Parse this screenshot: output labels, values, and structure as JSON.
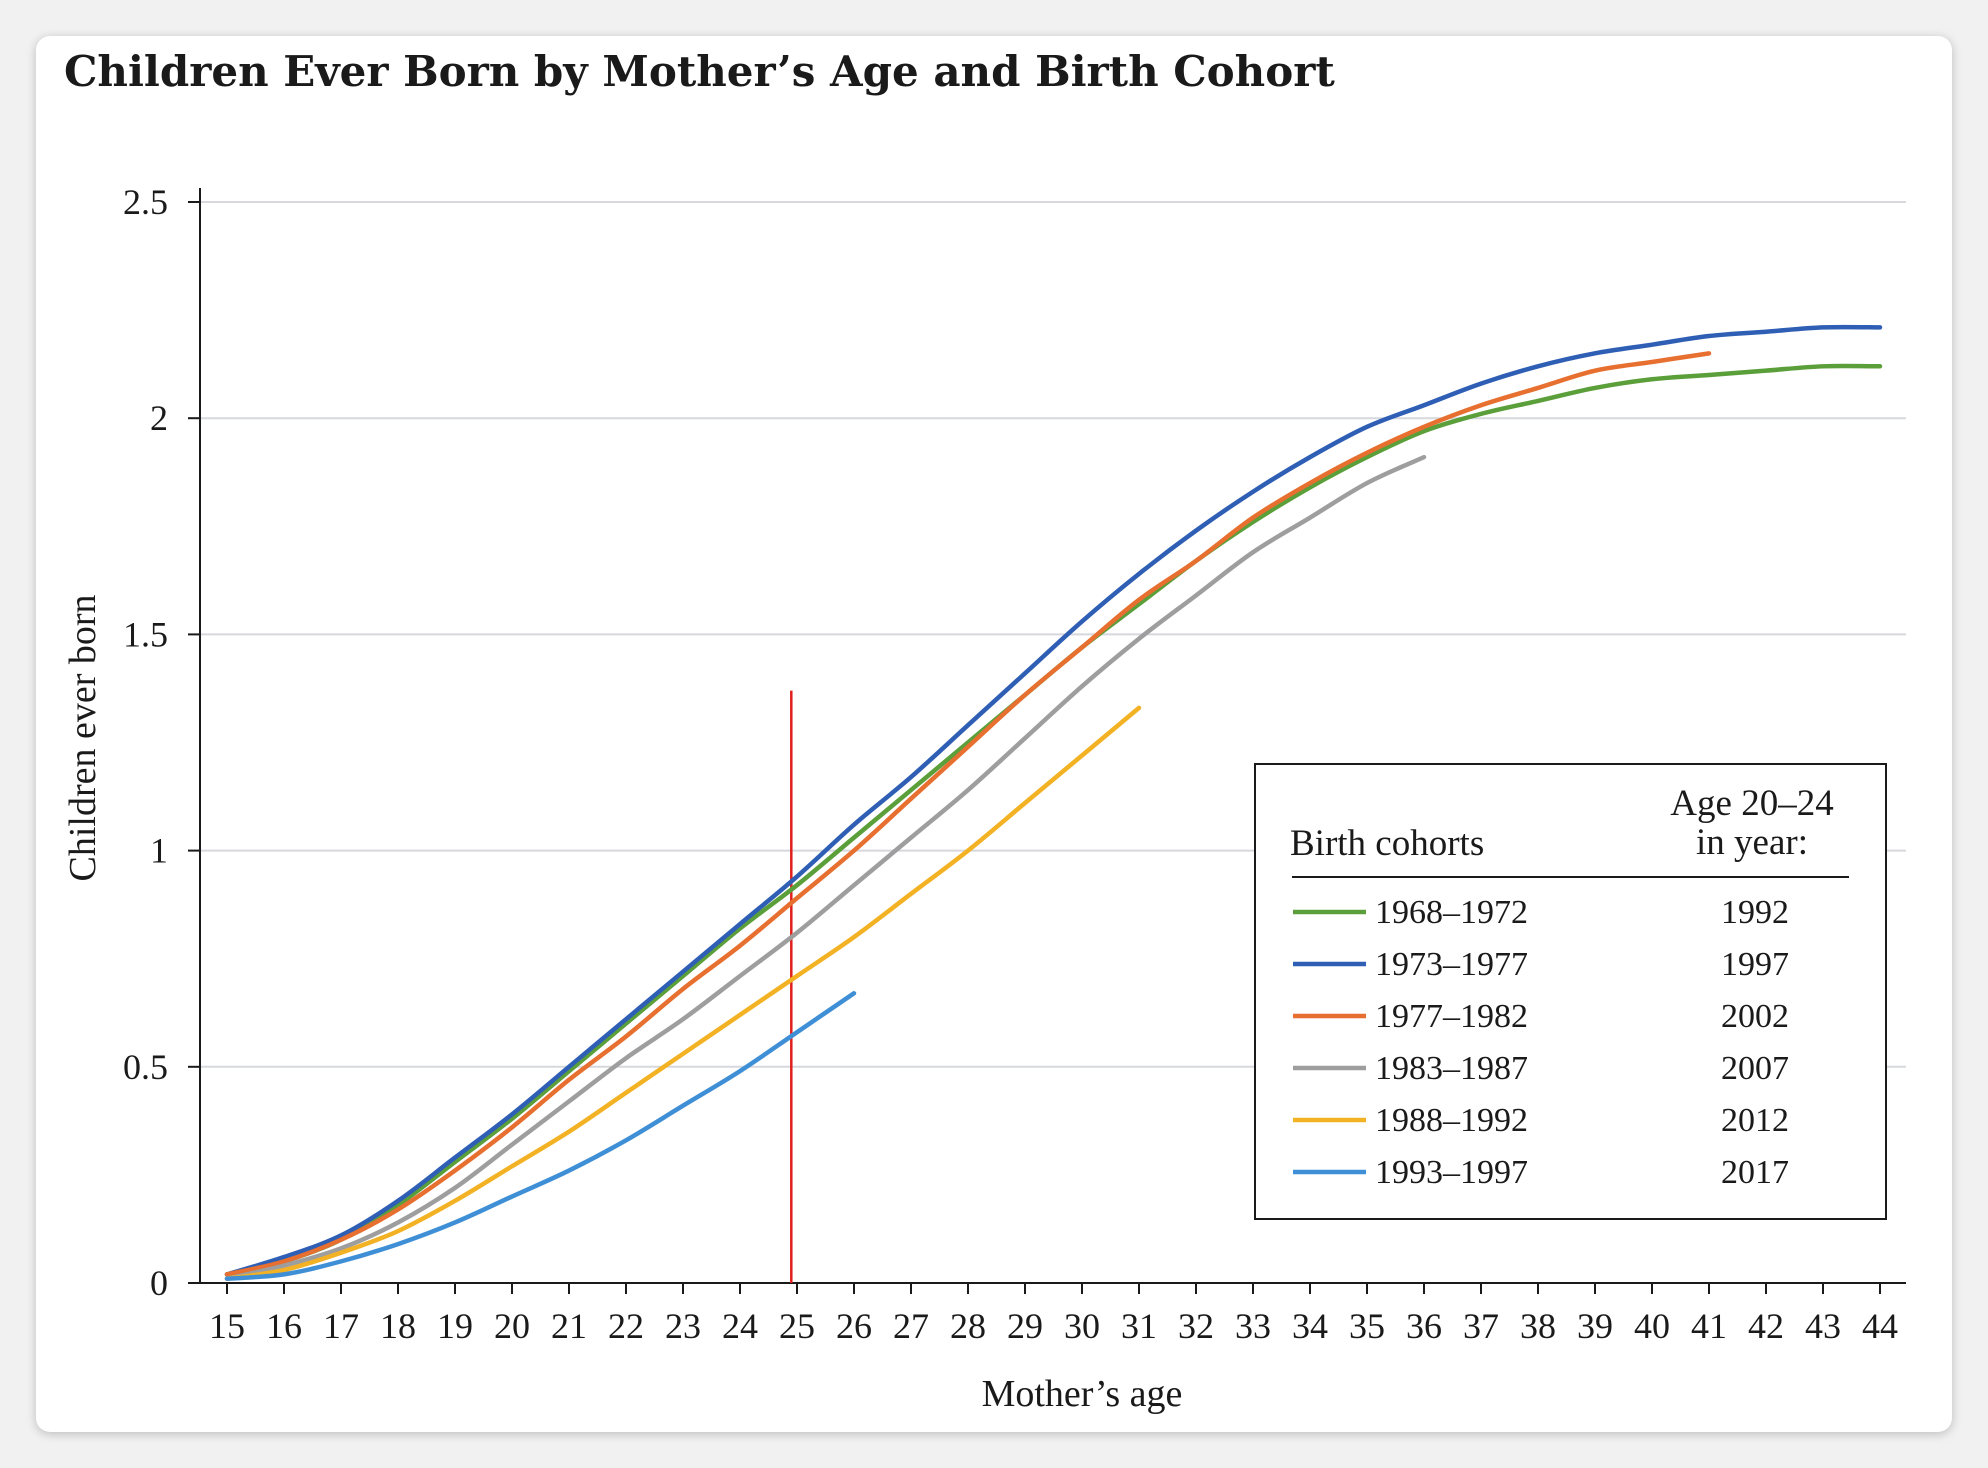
{
  "chart_data": {
    "type": "line",
    "title": "Children Ever Born by Mother’s Age and Birth Cohort",
    "xlabel": "Mother’s age",
    "ylabel": "Children ever born",
    "xlim": [
      15,
      44
    ],
    "ylim": [
      0,
      2.5
    ],
    "x_ticks": [
      "15",
      "16",
      "17",
      "18",
      "19",
      "20",
      "21",
      "22",
      "23",
      "24",
      "25",
      "26",
      "27",
      "28",
      "29",
      "30",
      "31",
      "32",
      "33",
      "34",
      "35",
      "36",
      "37",
      "38",
      "39",
      "40",
      "41",
      "42",
      "43",
      "44"
    ],
    "y_ticks": [
      "0",
      "0.5",
      "1",
      "1.5",
      "2",
      "2.5"
    ],
    "grid": true,
    "reference_line": {
      "x": 24.9,
      "y_top": 1.37,
      "color": "#e0201c"
    },
    "legend": {
      "placement": "bottom-right",
      "header_cohorts": "Birth cohorts",
      "header_year_line1": "Age 20–24",
      "header_year_line2": "in year:"
    },
    "series": [
      {
        "name": "1968–1972",
        "year": "1992",
        "color": "#5b9f3a",
        "x": [
          15,
          16,
          17,
          18,
          19,
          20,
          21,
          22,
          23,
          24,
          25,
          26,
          27,
          28,
          29,
          30,
          31,
          32,
          33,
          34,
          35,
          36,
          37,
          38,
          39,
          40,
          41,
          42,
          43,
          44
        ],
        "y": [
          0.02,
          0.05,
          0.1,
          0.18,
          0.28,
          0.38,
          0.49,
          0.6,
          0.71,
          0.82,
          0.92,
          1.03,
          1.14,
          1.25,
          1.36,
          1.47,
          1.57,
          1.67,
          1.76,
          1.84,
          1.91,
          1.97,
          2.01,
          2.04,
          2.07,
          2.09,
          2.1,
          2.11,
          2.12,
          2.12
        ]
      },
      {
        "name": "1973–1977",
        "year": "1997",
        "color": "#2f5fb5",
        "x": [
          15,
          16,
          17,
          18,
          19,
          20,
          21,
          22,
          23,
          24,
          25,
          26,
          27,
          28,
          29,
          30,
          31,
          32,
          33,
          34,
          35,
          36,
          37,
          38,
          39,
          40,
          41,
          42,
          43,
          44
        ],
        "y": [
          0.02,
          0.06,
          0.11,
          0.19,
          0.29,
          0.39,
          0.5,
          0.61,
          0.72,
          0.83,
          0.94,
          1.06,
          1.17,
          1.29,
          1.41,
          1.53,
          1.64,
          1.74,
          1.83,
          1.91,
          1.98,
          2.03,
          2.08,
          2.12,
          2.15,
          2.17,
          2.19,
          2.2,
          2.21,
          2.21
        ]
      },
      {
        "name": "1977–1982",
        "year": "2002",
        "color": "#e76f2f",
        "x": [
          15,
          16,
          17,
          18,
          19,
          20,
          21,
          22,
          23,
          24,
          25,
          26,
          27,
          28,
          29,
          30,
          31,
          32,
          33,
          34,
          35,
          36,
          37,
          38,
          39,
          40,
          41
        ],
        "y": [
          0.02,
          0.05,
          0.1,
          0.17,
          0.26,
          0.36,
          0.47,
          0.57,
          0.68,
          0.78,
          0.89,
          1.0,
          1.12,
          1.24,
          1.36,
          1.47,
          1.58,
          1.67,
          1.77,
          1.85,
          1.92,
          1.98,
          2.03,
          2.07,
          2.11,
          2.13,
          2.15
        ]
      },
      {
        "name": "1983–1987",
        "year": "2007",
        "color": "#9e9e9e",
        "x": [
          15,
          16,
          17,
          18,
          19,
          20,
          21,
          22,
          23,
          24,
          25,
          26,
          27,
          28,
          29,
          30,
          31,
          32,
          33,
          34,
          35,
          36
        ],
        "y": [
          0.01,
          0.04,
          0.08,
          0.14,
          0.22,
          0.32,
          0.42,
          0.52,
          0.61,
          0.71,
          0.81,
          0.92,
          1.03,
          1.14,
          1.26,
          1.38,
          1.49,
          1.59,
          1.69,
          1.77,
          1.85,
          1.91
        ]
      },
      {
        "name": "1988–1992",
        "year": "2012",
        "color": "#f2b224",
        "x": [
          15,
          16,
          17,
          18,
          19,
          20,
          21,
          22,
          23,
          24,
          25,
          26,
          27,
          28,
          29,
          30,
          31
        ],
        "y": [
          0.01,
          0.03,
          0.07,
          0.12,
          0.19,
          0.27,
          0.35,
          0.44,
          0.53,
          0.62,
          0.71,
          0.8,
          0.9,
          1.0,
          1.11,
          1.22,
          1.33
        ]
      },
      {
        "name": "1993–1997",
        "year": "2017",
        "color": "#3f8fd6",
        "x": [
          15,
          16,
          17,
          18,
          19,
          20,
          21,
          22,
          23,
          24,
          25,
          26
        ],
        "y": [
          0.01,
          0.02,
          0.05,
          0.09,
          0.14,
          0.2,
          0.26,
          0.33,
          0.41,
          0.49,
          0.58,
          0.67
        ]
      }
    ]
  }
}
